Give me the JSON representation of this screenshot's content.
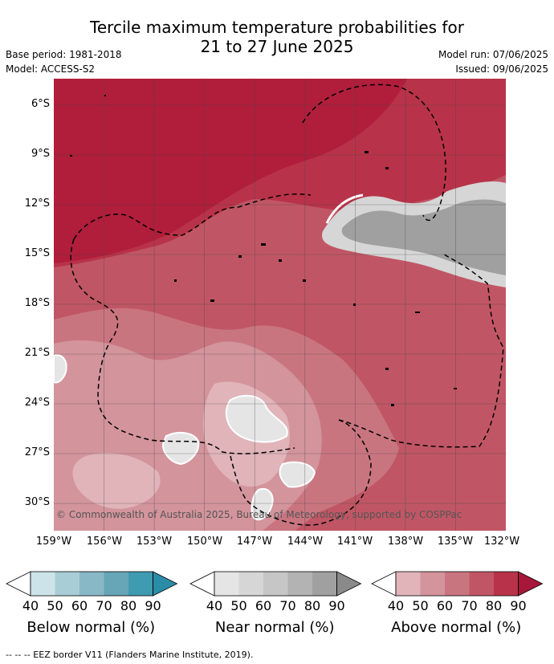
{
  "title": {
    "line1": "Tercile maximum temperature probabilities for",
    "line2": "21 to 27 June 2025"
  },
  "meta": {
    "base_period": "Base period: 1981-2018",
    "model": "Model: ACCESS-S2",
    "model_run": "Model run: 07/06/2025",
    "issued": "Issued: 09/06/2025"
  },
  "map": {
    "lat_labels": [
      "6°S",
      "9°S",
      "12°S",
      "15°S",
      "18°S",
      "21°S",
      "24°S",
      "27°S",
      "30°S"
    ],
    "lon_labels": [
      "159°W",
      "156°W",
      "153°W",
      "150°W",
      "147°W",
      "144°W",
      "141°W",
      "138°W",
      "135°W",
      "132°W"
    ],
    "copyright": "© Commonwealth of Australia 2025, Bureau of Meteorology, supported by COSPPac"
  },
  "colorbars": [
    {
      "title": "Below normal (%)",
      "ticks": [
        "40",
        "50",
        "60",
        "70",
        "80",
        "90"
      ],
      "colors": [
        "#ffffff",
        "#cde3ea",
        "#a9cdd6",
        "#88b8c5",
        "#66a6b6",
        "#3f9bb1",
        "#2b8ca7"
      ]
    },
    {
      "title": "Near normal (%)",
      "ticks": [
        "40",
        "50",
        "60",
        "70",
        "80",
        "90"
      ],
      "colors": [
        "#ffffff",
        "#e5e5e5",
        "#d6d6d6",
        "#c6c6c6",
        "#b3b3b3",
        "#a0a0a0",
        "#8a8a8a"
      ]
    },
    {
      "title": "Above normal (%)",
      "ticks": [
        "40",
        "50",
        "60",
        "70",
        "80",
        "90"
      ],
      "colors": [
        "#ffffff",
        "#e0b4b9",
        "#d3949c",
        "#c97580",
        "#c05665",
        "#b83349",
        "#a7173a"
      ]
    }
  ],
  "footnote": "--  --  -- EEZ border V11 (Flanders Marine Institute, 2019)."
}
